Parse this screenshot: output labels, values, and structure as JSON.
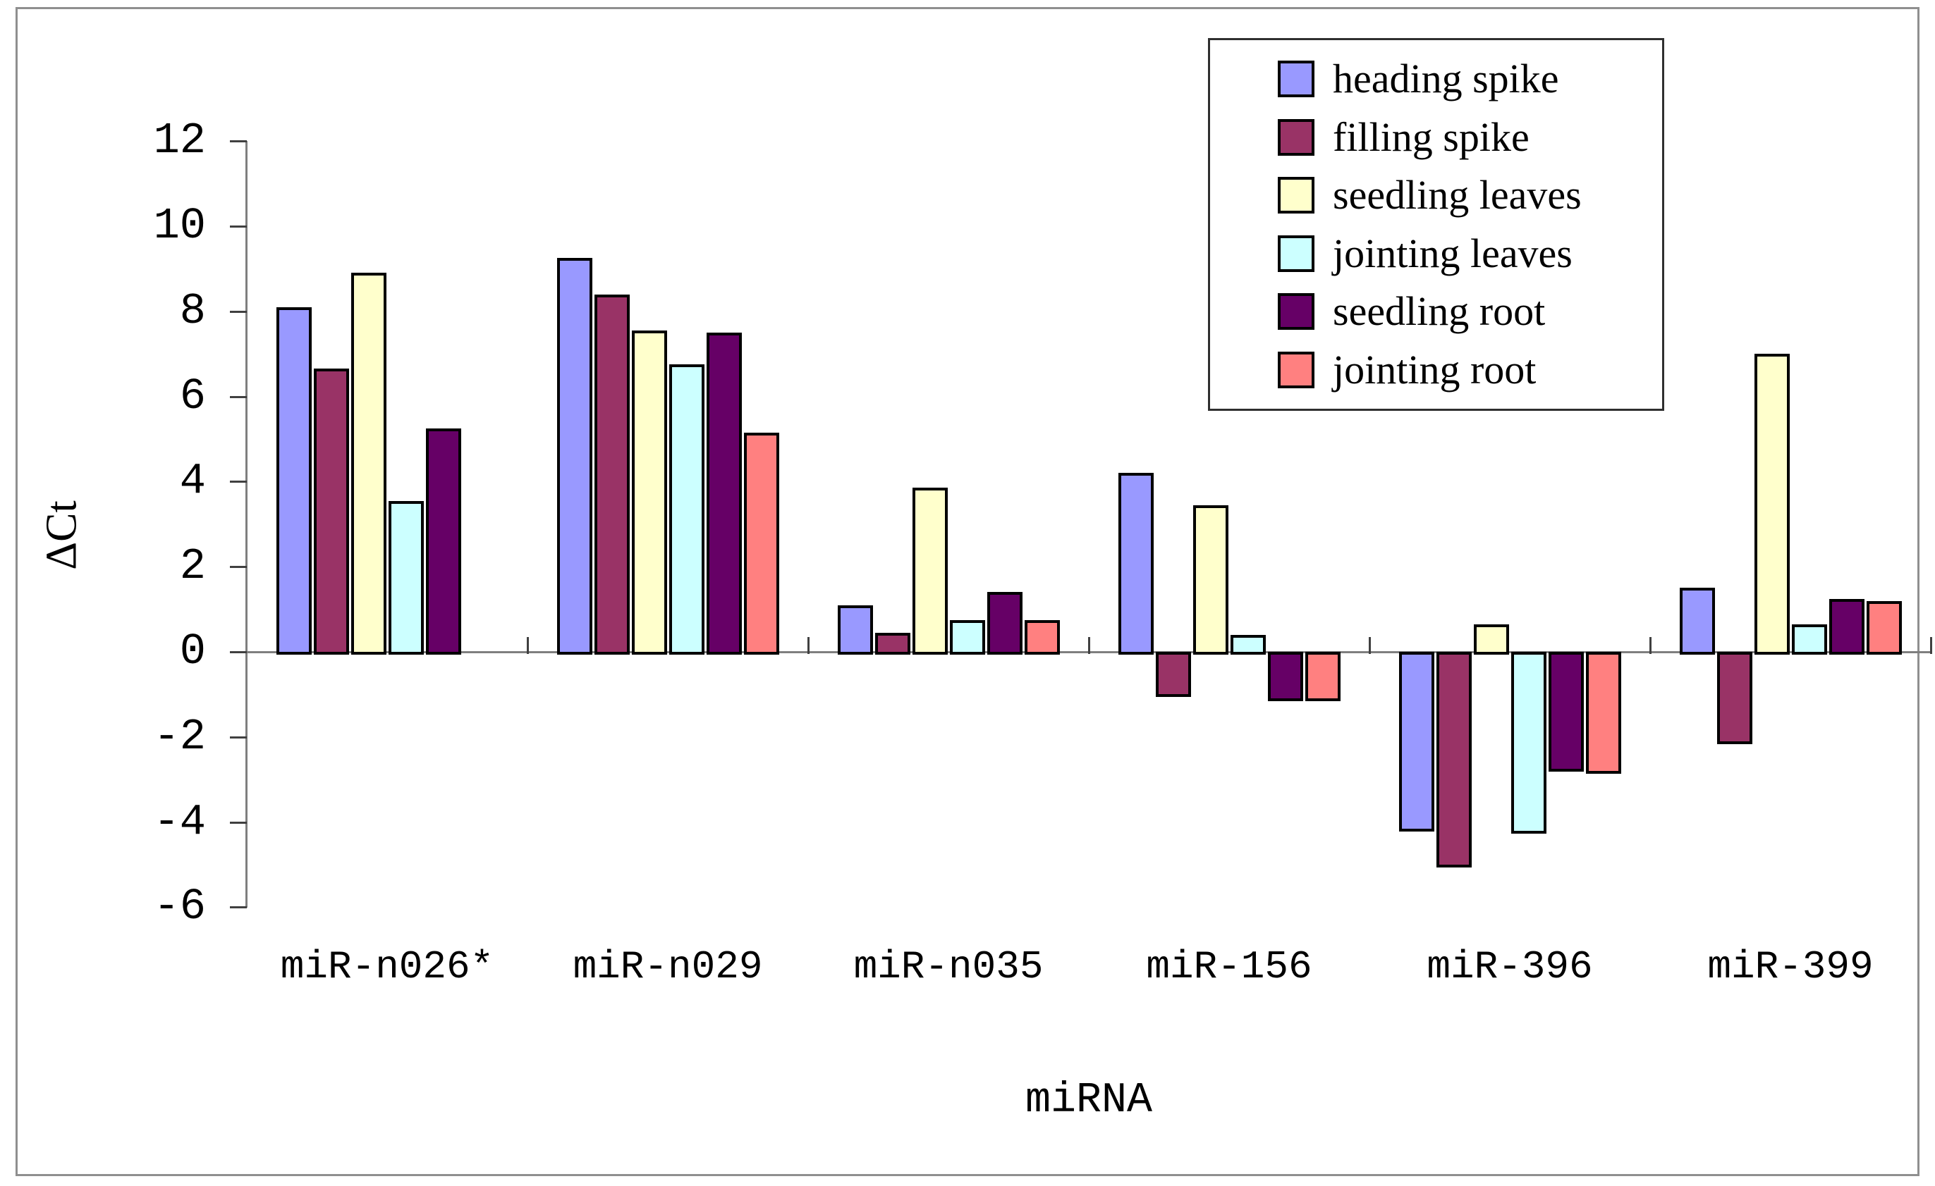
{
  "chart_data": {
    "type": "bar",
    "title": "",
    "xlabel": "miRNA",
    "ylabel": "ΔCt",
    "ylim": [
      -6,
      12
    ],
    "ytick_step": 2,
    "yticks": [
      12,
      10,
      8,
      6,
      4,
      2,
      0,
      -2,
      -4,
      -6
    ],
    "grid": false,
    "legend_position": "top-right",
    "categories": [
      "miR-n026*",
      "miR-n029",
      "miR-n035",
      "miR-156",
      "miR-396",
      "miR-399"
    ],
    "series": [
      {
        "name": "heading spike",
        "color": "#9999FF",
        "values": [
          8.1,
          9.25,
          1.1,
          4.2,
          -4.15,
          1.5
        ]
      },
      {
        "name": "filling spike",
        "color": "#993366",
        "values": [
          6.65,
          8.4,
          0.45,
          -1.0,
          -5.0,
          -2.1
        ]
      },
      {
        "name": "seedling leaves",
        "color": "#FFFFCC",
        "values": [
          8.9,
          7.55,
          3.85,
          3.45,
          0.65,
          7.0
        ]
      },
      {
        "name": "jointing leaves",
        "color": "#CCFFFF",
        "values": [
          3.55,
          6.75,
          0.75,
          0.4,
          -4.2,
          0.65
        ]
      },
      {
        "name": "seedling root",
        "color": "#660066",
        "values": [
          5.25,
          7.5,
          1.4,
          -1.1,
          -2.75,
          1.25
        ]
      },
      {
        "name": "jointing root",
        "color": "#FF8080",
        "values": [
          0,
          5.15,
          0.75,
          -1.1,
          -2.8,
          1.2
        ]
      }
    ]
  }
}
